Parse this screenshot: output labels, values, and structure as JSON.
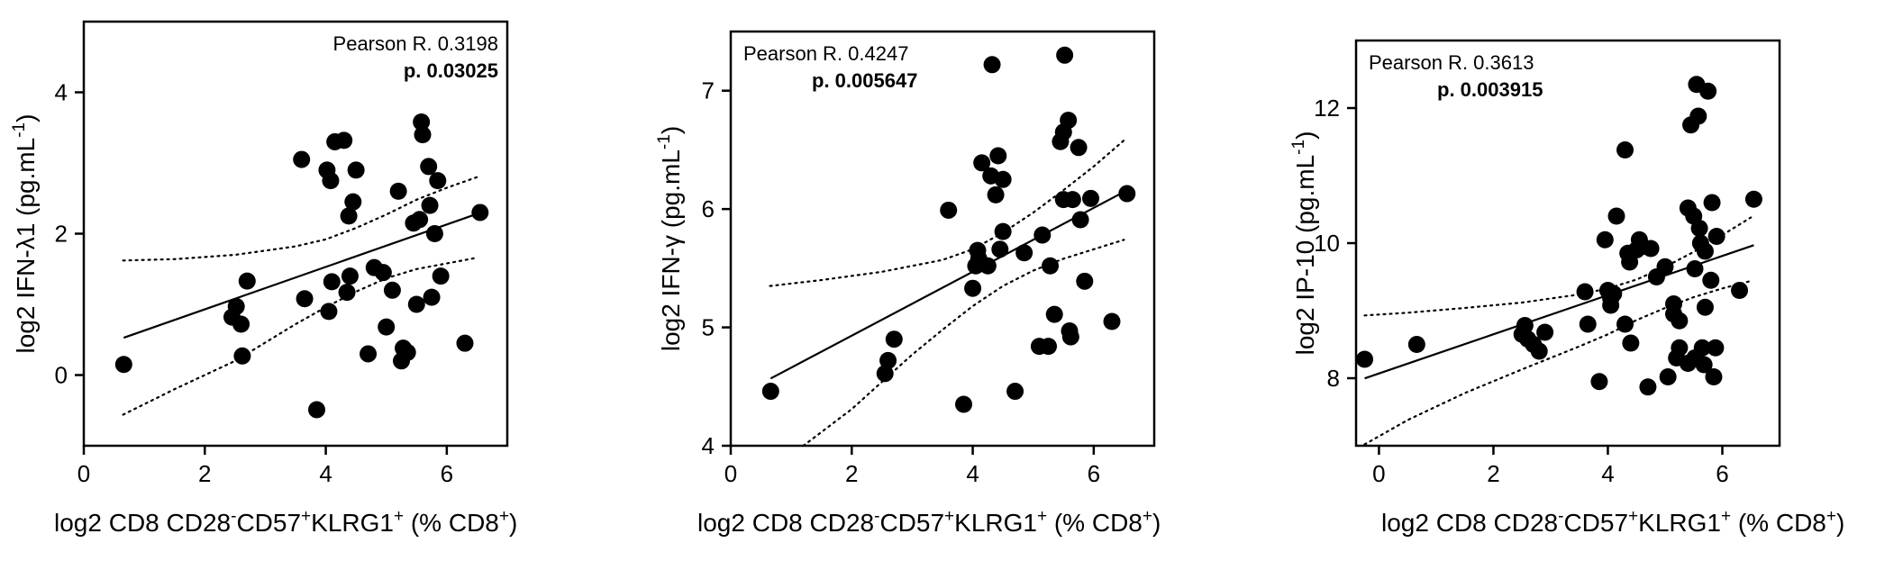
{
  "chart_data": [
    {
      "type": "scatter",
      "xlabel": {
        "main": "log2 CD8 CD28",
        "sup1": "-",
        "mid": "CD57",
        "sup2": "+",
        "mid2": "KLRG1",
        "sup3": "+",
        "paren": " (% CD8",
        "sup4": "+",
        "end": ")"
      },
      "ylabel": {
        "main": "log2 IFN-λ1 (pg.mL",
        "sup": "-1",
        "end": ")"
      },
      "xlim": [
        0,
        7
      ],
      "ylim": [
        -1,
        5
      ],
      "xticks": [
        0,
        2,
        4,
        6
      ],
      "yticks": [
        0,
        2,
        4
      ],
      "annotation": {
        "line1": "Pearson R. 0.3198",
        "line2": "p. 0.03025"
      },
      "regression": {
        "slope": 0.3,
        "intercept": 0.33
      },
      "ci_upper": [
        [
          0.65,
          1.62
        ],
        [
          1.5,
          1.64
        ],
        [
          2.5,
          1.7
        ],
        [
          3.5,
          1.82
        ],
        [
          4.0,
          1.92
        ],
        [
          4.5,
          2.08
        ],
        [
          5.0,
          2.27
        ],
        [
          5.5,
          2.48
        ],
        [
          6.0,
          2.65
        ],
        [
          6.5,
          2.8
        ]
      ],
      "ci_lower": [
        [
          0.65,
          -0.56
        ],
        [
          1.5,
          -0.2
        ],
        [
          2.5,
          0.2
        ],
        [
          3.5,
          0.72
        ],
        [
          4.0,
          0.96
        ],
        [
          4.5,
          1.18
        ],
        [
          5.0,
          1.37
        ],
        [
          5.5,
          1.5
        ],
        [
          6.0,
          1.58
        ],
        [
          6.5,
          1.66
        ]
      ],
      "points": [
        [
          0.66,
          0.15
        ],
        [
          2.45,
          0.82
        ],
        [
          2.52,
          0.97
        ],
        [
          2.6,
          0.72
        ],
        [
          2.62,
          0.27
        ],
        [
          2.7,
          1.33
        ],
        [
          3.6,
          3.05
        ],
        [
          3.65,
          1.08
        ],
        [
          3.85,
          -0.49
        ],
        [
          4.02,
          2.9
        ],
        [
          4.08,
          2.75
        ],
        [
          4.05,
          0.9
        ],
        [
          4.1,
          1.32
        ],
        [
          4.15,
          3.3
        ],
        [
          4.3,
          3.32
        ],
        [
          4.35,
          1.17
        ],
        [
          4.38,
          2.25
        ],
        [
          4.4,
          1.4
        ],
        [
          4.45,
          2.45
        ],
        [
          4.5,
          2.9
        ],
        [
          4.7,
          0.3
        ],
        [
          4.8,
          1.52
        ],
        [
          4.95,
          1.45
        ],
        [
          5.0,
          0.68
        ],
        [
          5.1,
          1.2
        ],
        [
          5.2,
          2.6
        ],
        [
          5.25,
          0.2
        ],
        [
          5.28,
          0.38
        ],
        [
          5.35,
          0.32
        ],
        [
          5.45,
          2.15
        ],
        [
          5.5,
          1.0
        ],
        [
          5.55,
          2.2
        ],
        [
          5.58,
          3.58
        ],
        [
          5.6,
          3.4
        ],
        [
          5.7,
          2.95
        ],
        [
          5.72,
          2.4
        ],
        [
          5.75,
          1.1
        ],
        [
          5.8,
          2.0
        ],
        [
          5.85,
          2.75
        ],
        [
          5.9,
          1.4
        ],
        [
          6.3,
          0.45
        ],
        [
          6.55,
          2.3
        ]
      ]
    },
    {
      "type": "scatter",
      "xlabel": {
        "main": "log2 CD8 CD28",
        "sup1": "-",
        "mid": "CD57",
        "sup2": "+",
        "mid2": "KLRG1",
        "sup3": "+",
        "paren": " (% CD8",
        "sup4": "+",
        "end": ")"
      },
      "ylabel": {
        "main": "log2 IFN-γ (pg.mL",
        "sup": "-1",
        "end": ")"
      },
      "xlim": [
        0,
        7
      ],
      "ylim": [
        4,
        7.5
      ],
      "xticks": [
        0,
        2,
        4,
        6
      ],
      "yticks": [
        4,
        5,
        6,
        7
      ],
      "annotation": {
        "line1": "Pearson R. 0.4247",
        "line2": "p. 0.005647"
      },
      "regression": {
        "slope": 0.27,
        "intercept": 4.39
      },
      "ci_upper": [
        [
          0.65,
          5.35
        ],
        [
          1.5,
          5.4
        ],
        [
          2.5,
          5.47
        ],
        [
          3.5,
          5.57
        ],
        [
          4.0,
          5.66
        ],
        [
          4.5,
          5.8
        ],
        [
          5.0,
          5.97
        ],
        [
          5.5,
          6.16
        ],
        [
          6.0,
          6.36
        ],
        [
          6.5,
          6.58
        ]
      ],
      "ci_lower": [
        [
          1.2,
          4.0
        ],
        [
          2.0,
          4.31
        ],
        [
          3.0,
          4.77
        ],
        [
          3.5,
          4.98
        ],
        [
          4.0,
          5.18
        ],
        [
          4.5,
          5.35
        ],
        [
          5.0,
          5.48
        ],
        [
          5.5,
          5.58
        ],
        [
          6.0,
          5.66
        ],
        [
          6.5,
          5.74
        ]
      ],
      "points": [
        [
          0.66,
          4.46
        ],
        [
          2.55,
          4.61
        ],
        [
          2.6,
          4.72
        ],
        [
          2.7,
          4.9
        ],
        [
          3.6,
          5.99
        ],
        [
          3.85,
          4.35
        ],
        [
          4.0,
          5.33
        ],
        [
          4.05,
          5.52
        ],
        [
          4.08,
          5.65
        ],
        [
          4.1,
          5.58
        ],
        [
          4.15,
          6.39
        ],
        [
          4.25,
          5.52
        ],
        [
          4.3,
          6.28
        ],
        [
          4.32,
          7.22
        ],
        [
          4.38,
          6.12
        ],
        [
          4.42,
          6.45
        ],
        [
          4.45,
          5.66
        ],
        [
          4.5,
          6.25
        ],
        [
          4.5,
          5.81
        ],
        [
          4.7,
          4.46
        ],
        [
          4.85,
          5.63
        ],
        [
          5.1,
          4.84
        ],
        [
          5.15,
          5.78
        ],
        [
          5.25,
          4.84
        ],
        [
          5.28,
          5.52
        ],
        [
          5.35,
          5.11
        ],
        [
          5.45,
          6.57
        ],
        [
          5.5,
          6.65
        ],
        [
          5.5,
          6.08
        ],
        [
          5.52,
          7.3
        ],
        [
          5.58,
          6.75
        ],
        [
          5.6,
          4.97
        ],
        [
          5.62,
          4.92
        ],
        [
          5.65,
          6.08
        ],
        [
          5.75,
          6.52
        ],
        [
          5.78,
          5.91
        ],
        [
          5.85,
          5.39
        ],
        [
          5.95,
          6.09
        ],
        [
          6.3,
          5.05
        ],
        [
          6.55,
          6.13
        ]
      ]
    },
    {
      "type": "scatter",
      "xlabel": {
        "main": "log2 CD8 CD28",
        "sup1": "-",
        "mid": "CD57",
        "sup2": "+",
        "mid2": "KLRG1",
        "sup3": "+",
        "paren": " (% CD8",
        "sup4": "+",
        "end": ")"
      },
      "ylabel": {
        "main": "log2 IP-10 (pg.mL",
        "sup": "-1",
        "end": ")"
      },
      "xlim": [
        -0.4,
        7
      ],
      "ylim": [
        7,
        13
      ],
      "xticks": [
        0,
        2,
        4,
        6
      ],
      "yticks": [
        8,
        10,
        12
      ],
      "annotation": {
        "line1": "Pearson R. 0.3613",
        "line2": "p. 0.003915"
      },
      "regression": {
        "slope": 0.29,
        "intercept": 8.07
      },
      "ci_upper": [
        [
          -0.25,
          8.93
        ],
        [
          0.5,
          8.97
        ],
        [
          1.5,
          9.04
        ],
        [
          2.5,
          9.12
        ],
        [
          3.5,
          9.24
        ],
        [
          4.0,
          9.33
        ],
        [
          4.5,
          9.46
        ],
        [
          5.0,
          9.65
        ],
        [
          5.5,
          9.87
        ],
        [
          6.0,
          10.12
        ],
        [
          6.5,
          10.38
        ]
      ],
      "ci_lower": [
        [
          -0.25,
          7.02
        ],
        [
          0.5,
          7.38
        ],
        [
          1.5,
          7.78
        ],
        [
          2.5,
          8.13
        ],
        [
          3.5,
          8.47
        ],
        [
          4.0,
          8.65
        ],
        [
          4.5,
          8.86
        ],
        [
          5.0,
          9.04
        ],
        [
          5.5,
          9.2
        ],
        [
          6.0,
          9.33
        ],
        [
          6.5,
          9.44
        ]
      ],
      "points": [
        [
          -0.25,
          8.28
        ],
        [
          0.66,
          8.5
        ],
        [
          2.5,
          8.65
        ],
        [
          2.55,
          8.78
        ],
        [
          2.6,
          8.58
        ],
        [
          2.7,
          8.5
        ],
        [
          2.8,
          8.4
        ],
        [
          2.9,
          8.68
        ],
        [
          3.6,
          9.28
        ],
        [
          3.65,
          8.8
        ],
        [
          3.85,
          7.95
        ],
        [
          3.95,
          10.05
        ],
        [
          4.0,
          9.3
        ],
        [
          4.05,
          9.18
        ],
        [
          4.05,
          9.08
        ],
        [
          4.1,
          9.25
        ],
        [
          4.15,
          10.4
        ],
        [
          4.3,
          11.38
        ],
        [
          4.3,
          8.8
        ],
        [
          4.35,
          9.85
        ],
        [
          4.38,
          9.72
        ],
        [
          4.4,
          8.52
        ],
        [
          4.5,
          9.9
        ],
        [
          4.55,
          10.05
        ],
        [
          4.6,
          9.95
        ],
        [
          4.7,
          7.87
        ],
        [
          4.75,
          9.92
        ],
        [
          4.85,
          9.5
        ],
        [
          5.0,
          9.65
        ],
        [
          5.05,
          8.02
        ],
        [
          5.15,
          9.1
        ],
        [
          5.15,
          8.95
        ],
        [
          5.2,
          8.3
        ],
        [
          5.25,
          8.85
        ],
        [
          5.25,
          8.45
        ],
        [
          5.4,
          10.52
        ],
        [
          5.4,
          8.22
        ],
        [
          5.45,
          11.75
        ],
        [
          5.5,
          10.4
        ],
        [
          5.52,
          9.62
        ],
        [
          5.52,
          8.3
        ],
        [
          5.55,
          12.35
        ],
        [
          5.58,
          11.88
        ],
        [
          5.6,
          10.22
        ],
        [
          5.62,
          10.0
        ],
        [
          5.65,
          8.45
        ],
        [
          5.68,
          8.2
        ],
        [
          5.7,
          9.88
        ],
        [
          5.7,
          9.05
        ],
        [
          5.75,
          12.25
        ],
        [
          5.8,
          9.45
        ],
        [
          5.82,
          10.6
        ],
        [
          5.85,
          8.02
        ],
        [
          5.88,
          8.45
        ],
        [
          5.9,
          10.1
        ],
        [
          6.3,
          9.3
        ],
        [
          6.55,
          10.65
        ]
      ]
    }
  ]
}
